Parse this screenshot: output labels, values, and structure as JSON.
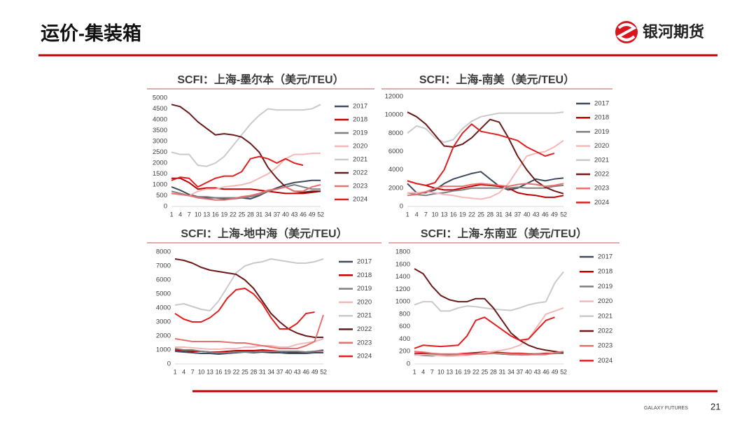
{
  "header": {
    "title": "运价-集装箱",
    "logo_text": "银河期货"
  },
  "footer": {
    "company": "GALAXY FUTURES",
    "page": "21"
  },
  "chart_data": [
    {
      "type": "line",
      "title": "SCFI：上海-墨尔本（美元/TEU）",
      "x": [
        1,
        4,
        7,
        10,
        13,
        16,
        19,
        22,
        25,
        28,
        31,
        34,
        37,
        40,
        43,
        46,
        49,
        52
      ],
      "xlim": [
        1,
        52
      ],
      "xticks": [
        1,
        4,
        7,
        10,
        13,
        16,
        19,
        22,
        25,
        28,
        31,
        34,
        37,
        40,
        43,
        46,
        49,
        52
      ],
      "ylim": [
        0,
        5000
      ],
      "yticks": [
        0,
        500,
        1000,
        1500,
        2000,
        2500,
        3000,
        3500,
        4000,
        4500,
        5000
      ],
      "series": [
        {
          "name": "2017",
          "color": "#3e4a5e",
          "values": [
            900,
            750,
            550,
            450,
            400,
            400,
            350,
            350,
            400,
            350,
            500,
            700,
            850,
            1000,
            1100,
            1150,
            1200,
            1200
          ]
        },
        {
          "name": "2018",
          "color": "#c00000",
          "values": [
            1300,
            1300,
            1100,
            800,
            850,
            850,
            800,
            800,
            800,
            800,
            750,
            700,
            650,
            600,
            600,
            600,
            650,
            700
          ]
        },
        {
          "name": "2019",
          "color": "#7f7f7f",
          "values": [
            700,
            600,
            500,
            450,
            450,
            400,
            400,
            400,
            400,
            450,
            550,
            700,
            800,
            900,
            1000,
            900,
            800,
            800
          ]
        },
        {
          "name": "2020",
          "color": "#f4b8b8",
          "values": [
            600,
            550,
            500,
            700,
            800,
            800,
            900,
            950,
            1000,
            1100,
            1300,
            1500,
            1800,
            2200,
            2400,
            2400,
            2450,
            2450
          ]
        },
        {
          "name": "2021",
          "color": "#cacaca",
          "values": [
            2500,
            2400,
            2400,
            1900,
            1850,
            2000,
            2300,
            2800,
            3300,
            3800,
            4200,
            4500,
            4450,
            4450,
            4450,
            4450,
            4500,
            4700
          ]
        },
        {
          "name": "2022",
          "color": "#6b1a1a",
          "values": [
            4700,
            4600,
            4300,
            3900,
            3600,
            3300,
            3350,
            3300,
            3200,
            2900,
            2500,
            1800,
            1300,
            900,
            700,
            650,
            700,
            700
          ]
        },
        {
          "name": "2023",
          "color": "#e8706f",
          "values": [
            600,
            550,
            500,
            400,
            350,
            300,
            300,
            350,
            450,
            500,
            600,
            750,
            800,
            900,
            700,
            700,
            900,
            1000
          ]
        },
        {
          "name": "2024",
          "color": "#e02020",
          "values": [
            1200,
            1350,
            1300,
            900,
            1100,
            1300,
            1400,
            1400,
            1600,
            2200,
            2300,
            2200,
            2000,
            2200,
            2000,
            1900,
            null,
            null
          ]
        }
      ]
    },
    {
      "type": "line",
      "title": "SCFI：上海-南美（美元/TEU）",
      "x": [
        1,
        4,
        7,
        10,
        13,
        16,
        19,
        22,
        25,
        28,
        31,
        34,
        37,
        40,
        43,
        46,
        49,
        52
      ],
      "xlim": [
        1,
        52
      ],
      "xticks": [
        1,
        4,
        7,
        10,
        13,
        16,
        19,
        22,
        25,
        28,
        31,
        34,
        37,
        40,
        43,
        46,
        49,
        52
      ],
      "ylim": [
        0,
        12000
      ],
      "yticks": [
        0,
        2000,
        4000,
        6000,
        8000,
        10000,
        12000
      ],
      "series": [
        {
          "name": "2017",
          "color": "#3e4a5e",
          "values": [
            2500,
            1500,
            1500,
            1800,
            2500,
            3000,
            3300,
            3600,
            3800,
            3000,
            2200,
            1800,
            2000,
            2500,
            3000,
            2800,
            3000,
            3100
          ]
        },
        {
          "name": "2018",
          "color": "#c00000",
          "values": [
            2800,
            2500,
            2300,
            2000,
            1800,
            1800,
            2000,
            2200,
            2400,
            2300,
            2200,
            2000,
            1500,
            1300,
            1200,
            1000,
            1000,
            1200
          ]
        },
        {
          "name": "2019",
          "color": "#7f7f7f",
          "values": [
            1500,
            1300,
            1200,
            1400,
            1500,
            1700,
            1800,
            2000,
            2000,
            2000,
            2000,
            2000,
            2100,
            2000,
            2000,
            2000,
            2200,
            2300
          ]
        },
        {
          "name": "2020",
          "color": "#f4b8b8",
          "values": [
            1500,
            1500,
            1600,
            1500,
            1300,
            1200,
            1000,
            900,
            800,
            1000,
            1500,
            2500,
            4000,
            5500,
            5800,
            6000,
            6500,
            7200
          ]
        },
        {
          "name": "2021",
          "color": "#cacaca",
          "values": [
            8000,
            8800,
            8500,
            7500,
            7000,
            7300,
            8500,
            9300,
            9800,
            10000,
            10200,
            10200,
            10200,
            10200,
            10200,
            10200,
            10200,
            10300
          ]
        },
        {
          "name": "2022",
          "color": "#6b1a1a",
          "values": [
            10300,
            9800,
            9000,
            7800,
            6600,
            6500,
            6800,
            7500,
            8500,
            9500,
            9200,
            7500,
            5500,
            4000,
            2800,
            2100,
            1700,
            1400
          ]
        },
        {
          "name": "2023",
          "color": "#e8706f",
          "values": [
            1200,
            1300,
            1600,
            2000,
            2200,
            2200,
            2200,
            2400,
            2500,
            2400,
            2300,
            2200,
            2400,
            2500,
            2400,
            2200,
            2300,
            2500
          ]
        },
        {
          "name": "2024",
          "color": "#e02020",
          "values": [
            2800,
            2500,
            2300,
            2600,
            4000,
            6500,
            8000,
            9000,
            8200,
            8000,
            7800,
            7500,
            7200,
            6500,
            6000,
            5500,
            5800,
            null
          ]
        }
      ]
    },
    {
      "type": "line",
      "title": "SCFI：上海-地中海（美元/TEU）",
      "x": [
        1,
        4,
        7,
        10,
        13,
        16,
        19,
        22,
        25,
        28,
        31,
        34,
        37,
        40,
        43,
        46,
        49,
        52
      ],
      "xlim": [
        1,
        52
      ],
      "xticks": [
        1,
        4,
        7,
        10,
        13,
        16,
        19,
        22,
        25,
        28,
        31,
        34,
        37,
        40,
        43,
        46,
        49,
        52
      ],
      "ylim": [
        0,
        8000
      ],
      "yticks": [
        0,
        1000,
        2000,
        3000,
        4000,
        5000,
        6000,
        7000,
        8000
      ],
      "series": [
        {
          "name": "2017",
          "color": "#3e4a5e",
          "values": [
            900,
            850,
            800,
            750,
            750,
            700,
            750,
            800,
            850,
            800,
            850,
            800,
            800,
            750,
            750,
            750,
            800,
            800
          ]
        },
        {
          "name": "2018",
          "color": "#c00000",
          "values": [
            1000,
            950,
            900,
            900,
            850,
            850,
            900,
            950,
            950,
            950,
            1000,
            950,
            900,
            850,
            850,
            850,
            900,
            950
          ]
        },
        {
          "name": "2019",
          "color": "#7f7f7f",
          "values": [
            1100,
            1000,
            1000,
            900,
            850,
            800,
            800,
            850,
            850,
            850,
            900,
            900,
            900,
            900,
            900,
            850,
            900,
            1000
          ]
        },
        {
          "name": "2020",
          "color": "#f4b8b8",
          "values": [
            1200,
            1200,
            1150,
            1100,
            1050,
            1050,
            1100,
            1100,
            1200,
            1200,
            1300,
            1300,
            1200,
            1200,
            1400,
            1500,
            1600,
            1800
          ]
        },
        {
          "name": "2021",
          "color": "#cacaca",
          "values": [
            4200,
            4300,
            4100,
            3900,
            3800,
            4500,
            5500,
            6500,
            7000,
            7200,
            7300,
            7500,
            7400,
            7300,
            7200,
            7200,
            7300,
            7500
          ]
        },
        {
          "name": "2022",
          "color": "#6b1a1a",
          "values": [
            7500,
            7400,
            7200,
            6900,
            6700,
            6600,
            6500,
            6400,
            6000,
            5400,
            4500,
            3600,
            3000,
            2500,
            2200,
            2000,
            1900,
            1900
          ]
        },
        {
          "name": "2023",
          "color": "#e8706f",
          "values": [
            1800,
            1700,
            1600,
            1600,
            1600,
            1600,
            1550,
            1500,
            1500,
            1400,
            1300,
            1200,
            1100,
            1100,
            1100,
            1300,
            1600,
            3500
          ]
        },
        {
          "name": "2024",
          "color": "#e02020",
          "values": [
            3600,
            3200,
            3000,
            3000,
            3300,
            3800,
            4700,
            5300,
            5400,
            5000,
            4300,
            3300,
            2500,
            2500,
            2900,
            3600,
            3700,
            null
          ]
        }
      ]
    },
    {
      "type": "line",
      "title": "SCFI：上海-东南亚（美元/TEU）",
      "x": [
        1,
        4,
        7,
        10,
        13,
        16,
        19,
        22,
        25,
        28,
        31,
        34,
        37,
        40,
        43,
        46,
        49,
        52
      ],
      "xlim": [
        1,
        52
      ],
      "xticks": [
        1,
        4,
        7,
        10,
        13,
        16,
        19,
        22,
        25,
        28,
        31,
        34,
        37,
        40,
        43,
        46,
        49,
        52
      ],
      "ylim": [
        0,
        1800
      ],
      "yticks": [
        0,
        200,
        400,
        600,
        800,
        1000,
        1200,
        1400,
        1600,
        1800
      ],
      "series": [
        {
          "name": "2017",
          "color": "#3e4a5e",
          "values": [
            150,
            140,
            130,
            140,
            150,
            150,
            160,
            170,
            180,
            170,
            160,
            160,
            150,
            150,
            160,
            160,
            170,
            180
          ]
        },
        {
          "name": "2018",
          "color": "#c00000",
          "values": [
            170,
            170,
            160,
            150,
            150,
            160,
            170,
            180,
            190,
            190,
            180,
            170,
            170,
            160,
            160,
            170,
            170,
            180
          ]
        },
        {
          "name": "2019",
          "color": "#7f7f7f",
          "values": [
            160,
            150,
            150,
            140,
            150,
            150,
            160,
            160,
            170,
            170,
            160,
            150,
            150,
            150,
            160,
            160,
            170,
            170
          ]
        },
        {
          "name": "2020",
          "color": "#f4b8b8",
          "values": [
            140,
            150,
            140,
            130,
            120,
            130,
            140,
            160,
            180,
            200,
            220,
            250,
            300,
            400,
            600,
            800,
            850,
            900
          ]
        },
        {
          "name": "2021",
          "color": "#cacaca",
          "values": [
            950,
            1000,
            1000,
            850,
            850,
            900,
            930,
            920,
            900,
            880,
            870,
            860,
            900,
            950,
            980,
            1000,
            1300,
            1480
          ]
        },
        {
          "name": "2022",
          "color": "#6b1a1a",
          "values": [
            1530,
            1450,
            1250,
            1100,
            1030,
            1000,
            1000,
            1050,
            1050,
            900,
            700,
            500,
            380,
            300,
            250,
            220,
            200,
            180
          ]
        },
        {
          "name": "2023",
          "color": "#e8706f",
          "values": [
            200,
            190,
            170,
            160,
            160,
            160,
            150,
            160,
            160,
            170,
            170,
            160,
            160,
            150,
            150,
            150,
            180,
            200
          ]
        },
        {
          "name": "2024",
          "color": "#e02020",
          "values": [
            250,
            300,
            290,
            280,
            290,
            300,
            450,
            700,
            750,
            650,
            550,
            450,
            380,
            400,
            550,
            700,
            750,
            null
          ]
        }
      ]
    }
  ]
}
